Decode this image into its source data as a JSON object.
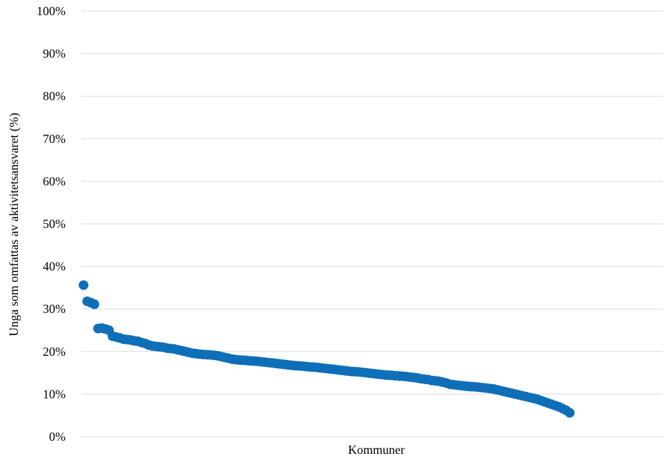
{
  "chart_data": {
    "type": "scatter",
    "title": "",
    "xlabel": "Kommuner",
    "ylabel": "Unga som omfattas av aktivitetsansvaret (%)",
    "ylim": [
      0,
      100
    ],
    "yticks": [
      "0%",
      "10%",
      "20%",
      "30%",
      "40%",
      "50%",
      "60%",
      "70%",
      "80%",
      "90%",
      "100%"
    ],
    "grid": "horizontal",
    "legend": "none",
    "point_color": "#0e6fb8",
    "series": [
      {
        "values": [
          35.6,
          31.8,
          31.5,
          31.1,
          25.4,
          25.5,
          25.3,
          25.0,
          23.6,
          23.4,
          23.2,
          22.9,
          22.8,
          22.7,
          22.5,
          22.4,
          22.1,
          21.9,
          21.5,
          21.3,
          21.2,
          21.1,
          21.0,
          20.8,
          20.7,
          20.6,
          20.4,
          20.2,
          20.0,
          19.8,
          19.6,
          19.5,
          19.4,
          19.3,
          19.25,
          19.2,
          19.1,
          19.0,
          18.8,
          18.6,
          18.4,
          18.2,
          18.1,
          18.0,
          17.95,
          17.9,
          17.8,
          17.75,
          17.7,
          17.6,
          17.5,
          17.4,
          17.3,
          17.2,
          17.1,
          17.0,
          16.9,
          16.8,
          16.7,
          16.65,
          16.6,
          16.5,
          16.4,
          16.35,
          16.3,
          16.2,
          16.1,
          16.0,
          15.9,
          15.8,
          15.7,
          15.6,
          15.5,
          15.4,
          15.3,
          15.25,
          15.2,
          15.1,
          15.0,
          14.9,
          14.8,
          14.7,
          14.6,
          14.5,
          14.45,
          14.4,
          14.3,
          14.25,
          14.2,
          14.1,
          14.0,
          13.9,
          13.8,
          13.6,
          13.5,
          13.4,
          13.2,
          13.1,
          13.0,
          12.8,
          12.6,
          12.3,
          12.2,
          12.1,
          12.0,
          11.9,
          11.8,
          11.75,
          11.7,
          11.6,
          11.5,
          11.4,
          11.3,
          11.2,
          11.0,
          10.8,
          10.6,
          10.4,
          10.2,
          10.0,
          9.8,
          9.6,
          9.4,
          9.2,
          9.0,
          8.8,
          8.5,
          8.2,
          7.9,
          7.6,
          7.3,
          7.0,
          6.6,
          6.2,
          5.6
        ]
      }
    ]
  }
}
